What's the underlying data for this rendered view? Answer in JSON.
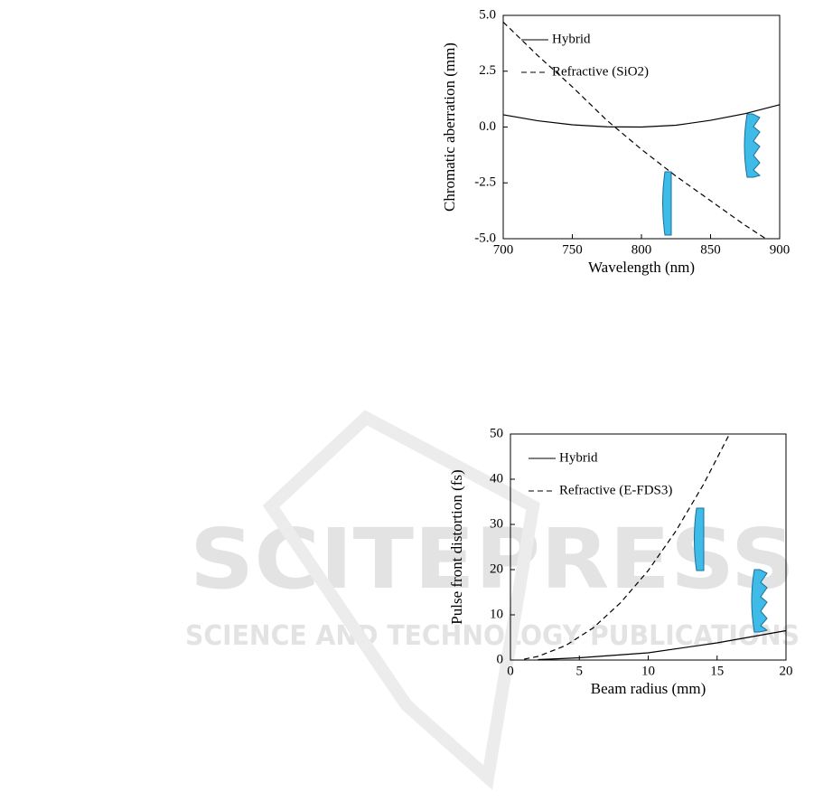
{
  "watermark": {
    "big": "SCITEPRESS",
    "small": "SCIENCE AND TECHNOLOGY PUBLICATIONS"
  },
  "chart_data": [
    {
      "type": "line",
      "xlabel": "Wavelength (nm)",
      "ylabel": "Chromatic aberration (mm)",
      "xlim": [
        700,
        900
      ],
      "xticks": [
        700,
        750,
        800,
        850,
        900
      ],
      "ylim": [
        -5,
        5
      ],
      "yticks": [
        {
          "value": -5,
          "label": "-5.0"
        },
        -2.5,
        {
          "value": 0,
          "label": "0.0"
        },
        2.5,
        {
          "value": 5,
          "label": "5.0"
        }
      ],
      "series": [
        {
          "name": "Hybrid",
          "color": "#000000",
          "dashed": false,
          "x": [
            700,
            725,
            750,
            775,
            800,
            825,
            850,
            875,
            900
          ],
          "values": [
            0.55,
            0.28,
            0.1,
            0.01,
            0.0,
            0.08,
            0.3,
            0.6,
            1.0
          ]
        },
        {
          "name": "Refractive (SiO2)",
          "color": "#000000",
          "dashed": true,
          "x": [
            700,
            725,
            750,
            775,
            800,
            825,
            850,
            875,
            890
          ],
          "values": [
            4.7,
            3.2,
            1.8,
            0.3,
            -1.0,
            -2.2,
            -3.3,
            -4.4,
            -5.0
          ]
        }
      ]
    },
    {
      "type": "line",
      "xlabel": "Beam radius (mm)",
      "ylabel": "Pulse front distortion (fs)",
      "xlim": [
        0,
        20
      ],
      "xticks": [
        0,
        5,
        10,
        15,
        20
      ],
      "ylim": [
        0,
        50
      ],
      "yticks": [
        0,
        10,
        20,
        30,
        40,
        50
      ],
      "series": [
        {
          "name": "Hybrid",
          "color": "#000000",
          "dashed": false,
          "x": [
            2,
            5,
            10,
            15,
            20
          ],
          "values": [
            0.1,
            0.5,
            1.6,
            3.8,
            6.5
          ]
        },
        {
          "name": "Refractive (E-FDS3)",
          "color": "#000000",
          "dashed": true,
          "x": [
            1,
            2,
            4,
            6,
            8,
            10,
            12,
            14,
            15.9
          ],
          "values": [
            0.2,
            0.8,
            3.2,
            7.1,
            12.7,
            19.8,
            28.5,
            38.8,
            50
          ]
        }
      ]
    }
  ]
}
